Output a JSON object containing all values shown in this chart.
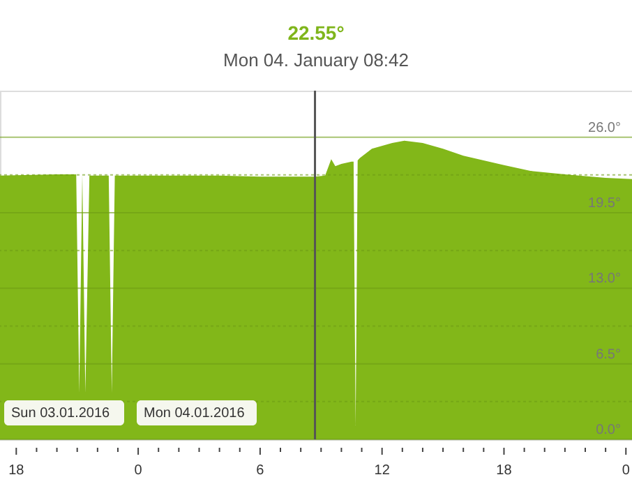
{
  "chart_data": {
    "type": "area",
    "title": "22.55°",
    "subtitle": "Mon 04. January 08:42",
    "x": [
      "2016-01-03T17:12",
      "2016-01-03T20:00",
      "2016-01-03T20:48",
      "2016-01-03T20:57",
      "2016-01-03T21:06",
      "2016-01-03T21:15",
      "2016-01-03T21:24",
      "2016-01-03T21:36",
      "2016-01-03T22:24",
      "2016-01-03T22:33",
      "2016-01-03T22:42",
      "2016-01-03T22:51",
      "2016-01-03T23:00",
      "2016-01-04T00:00",
      "2016-01-04T02:00",
      "2016-01-04T04:00",
      "2016-01-04T06:00",
      "2016-01-04T08:00",
      "2016-01-04T08:42",
      "2016-01-04T09:12",
      "2016-01-04T09:30",
      "2016-01-04T09:42",
      "2016-01-04T10:00",
      "2016-01-04T10:30",
      "2016-01-04T10:36",
      "2016-01-04T10:42",
      "2016-01-04T10:48",
      "2016-01-04T10:54",
      "2016-01-04T11:30",
      "2016-01-04T12:30",
      "2016-01-04T13:06",
      "2016-01-04T14:00",
      "2016-01-04T15:00",
      "2016-01-04T16:00",
      "2016-01-04T17:00",
      "2016-01-04T18:00",
      "2016-01-04T19:18",
      "2016-01-04T21:00",
      "2016-01-04T23:00",
      "2016-01-05T00:18"
    ],
    "series": [
      {
        "color": "#82b719",
        "values": [
          22.7,
          22.8,
          22.8,
          22.8,
          4.0,
          22.8,
          4.0,
          22.7,
          22.7,
          22.7,
          4.0,
          22.7,
          22.7,
          22.7,
          22.7,
          22.7,
          22.6,
          22.6,
          22.6,
          22.7,
          24.1,
          23.5,
          23.7,
          23.9,
          23.9,
          1.2,
          24.0,
          24.2,
          25.0,
          25.5,
          25.7,
          25.5,
          25.0,
          24.4,
          24.0,
          23.6,
          23.1,
          22.8,
          22.5,
          22.4
        ]
      }
    ],
    "xlim": [
      "2016-01-03T17:12",
      "2016-01-05T00:18"
    ],
    "xticks": [
      {
        "value": "2016-01-03T18:00",
        "label": "18"
      },
      {
        "value": "2016-01-03T19:00",
        "label": null
      },
      {
        "value": "2016-01-03T20:00",
        "label": null
      },
      {
        "value": "2016-01-03T21:00",
        "label": null
      },
      {
        "value": "2016-01-03T22:00",
        "label": null
      },
      {
        "value": "2016-01-03T23:00",
        "label": null
      },
      {
        "value": "2016-01-04T00:00",
        "label": "0"
      },
      {
        "value": "2016-01-04T01:00",
        "label": null
      },
      {
        "value": "2016-01-04T02:00",
        "label": null
      },
      {
        "value": "2016-01-04T03:00",
        "label": null
      },
      {
        "value": "2016-01-04T04:00",
        "label": null
      },
      {
        "value": "2016-01-04T05:00",
        "label": null
      },
      {
        "value": "2016-01-04T06:00",
        "label": "6"
      },
      {
        "value": "2016-01-04T07:00",
        "label": null
      },
      {
        "value": "2016-01-04T08:00",
        "label": null
      },
      {
        "value": "2016-01-04T09:00",
        "label": null
      },
      {
        "value": "2016-01-04T10:00",
        "label": null
      },
      {
        "value": "2016-01-04T11:00",
        "label": null
      },
      {
        "value": "2016-01-04T12:00",
        "label": "12"
      },
      {
        "value": "2016-01-04T13:00",
        "label": null
      },
      {
        "value": "2016-01-04T14:00",
        "label": null
      },
      {
        "value": "2016-01-04T15:00",
        "label": null
      },
      {
        "value": "2016-01-04T16:00",
        "label": null
      },
      {
        "value": "2016-01-04T17:00",
        "label": null
      },
      {
        "value": "2016-01-04T18:00",
        "label": "18"
      },
      {
        "value": "2016-01-04T19:00",
        "label": null
      },
      {
        "value": "2016-01-04T20:00",
        "label": null
      },
      {
        "value": "2016-01-04T21:00",
        "label": null
      },
      {
        "value": "2016-01-04T22:00",
        "label": null
      },
      {
        "value": "2016-01-04T23:00",
        "label": null
      },
      {
        "value": "2016-01-05T00:00",
        "label": "0"
      }
    ],
    "ylim": [
      0,
      30
    ],
    "yticks": [
      {
        "value": 0,
        "label": "0.0°"
      },
      {
        "value": 3.25,
        "label": null
      },
      {
        "value": 6.5,
        "label": "6.5°"
      },
      {
        "value": 9.75,
        "label": null
      },
      {
        "value": 13,
        "label": "13.0°"
      },
      {
        "value": 16.25,
        "label": null
      },
      {
        "value": 19.5,
        "label": "19.5°"
      },
      {
        "value": 22.75,
        "label": null
      },
      {
        "value": 26,
        "label": "26.0°"
      }
    ],
    "grid": "y",
    "ref_lines": [
      {
        "axis": "x",
        "value": "2016-01-04T08:42",
        "color": "#555555"
      }
    ],
    "annotations": [
      "Sun 03.01.2016",
      "Mon 04.01.2016"
    ]
  }
}
